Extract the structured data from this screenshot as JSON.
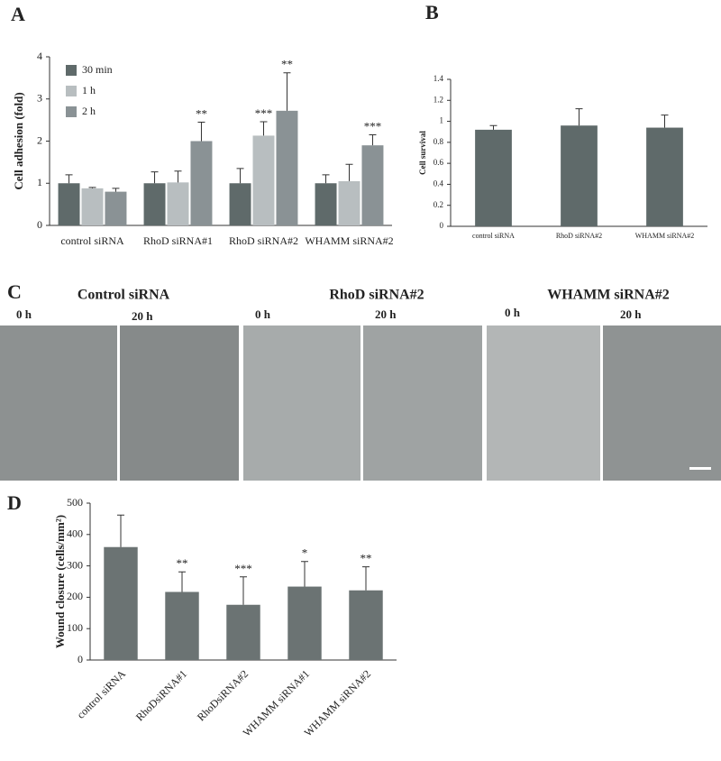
{
  "panels": [
    "A",
    "B",
    "C",
    "D"
  ],
  "micrographs": [
    {
      "title": "Control siRNA",
      "times": [
        "0 h",
        "20 h"
      ]
    },
    {
      "title": "RhoD siRNA#2",
      "times": [
        "0 h",
        "20 h"
      ]
    },
    {
      "title": "WHAMM siRNA#2",
      "times": [
        "0 h",
        "20 h"
      ]
    }
  ],
  "chart_data": [
    {
      "type": "bar",
      "ylabel": "Cell adhesion (fold)",
      "categories": [
        "control siRNA",
        "RhoD siRNA#1",
        "RhoD siRNA#2",
        "WHAMM siRNA#2"
      ],
      "series": [
        {
          "name": "30 min",
          "color": "#5f6a6a",
          "values": [
            1.0,
            1.0,
            1.0,
            1.0
          ],
          "errors": [
            0.2,
            0.27,
            0.35,
            0.2
          ],
          "significance": [
            null,
            null,
            null,
            null
          ]
        },
        {
          "name": "1 h",
          "color": "#b8bec0",
          "values": [
            0.88,
            1.02,
            2.13,
            1.05
          ],
          "errors": [
            0.02,
            0.27,
            0.33,
            0.4
          ],
          "significance": [
            null,
            null,
            "***",
            null
          ]
        },
        {
          "name": "2 h",
          "color": "#8a9295",
          "values": [
            0.8,
            2.0,
            2.72,
            1.9
          ],
          "errors": [
            0.08,
            0.45,
            0.9,
            0.25
          ],
          "significance": [
            null,
            "**",
            "**",
            "***"
          ]
        }
      ],
      "ylim": [
        0,
        4
      ],
      "yticks": [
        0,
        1,
        2,
        3,
        4
      ],
      "legend": "top-left",
      "grid": false
    },
    {
      "type": "bar",
      "ylabel": "Cell survival",
      "categories": [
        "control siRNA",
        "RhoD siRNA#2",
        "WHAMM siRNA#2"
      ],
      "series": [
        {
          "name": null,
          "color": "#5f6a6a",
          "values": [
            0.92,
            0.96,
            0.94
          ],
          "errors": [
            0.04,
            0.16,
            0.12
          ],
          "significance": [
            null,
            null,
            null
          ]
        }
      ],
      "ylim": [
        0,
        1.4
      ],
      "yticks": [
        0,
        0.2,
        0.4,
        0.6,
        0.8,
        1,
        1.2,
        1.4
      ],
      "grid": false
    },
    {
      "type": "bar",
      "ylabel": "Wound closure (cells/mm²)",
      "categories": [
        "control siRNA",
        "RhoDsiRNA#1",
        "RhoDsiRNA#2",
        "WHAMM siRNA#1",
        "WHAMM siRNA#2"
      ],
      "series": [
        {
          "name": null,
          "color": "#6b7373",
          "values": [
            360,
            217,
            176,
            234,
            222
          ],
          "errors": [
            102,
            64,
            89,
            80,
            75
          ],
          "significance": [
            null,
            "**",
            "***",
            "*",
            "**"
          ]
        }
      ],
      "ylim": [
        0,
        500
      ],
      "yticks": [
        0,
        100,
        200,
        300,
        400,
        500
      ],
      "grid": false
    }
  ]
}
